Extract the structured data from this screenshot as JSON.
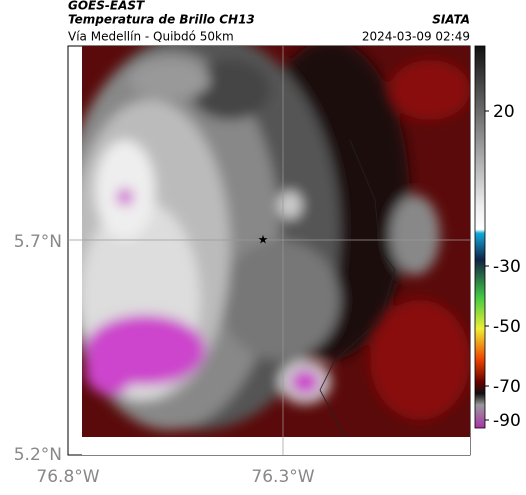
{
  "header": {
    "source": "GOES-EAST",
    "title": "Temperatura de Brillo CH13",
    "subtitle": "Vía Medellín - Quibdó 50km",
    "brand": "SIATA",
    "timestamp": "2024-03-09 02:49"
  },
  "map": {
    "lat_labels": [
      "5.7°N",
      "5.2°N"
    ],
    "lon_labels": [
      "76.8°W",
      "76.3°W"
    ]
  },
  "colorbar": {
    "ticks": [
      20,
      -30,
      -50,
      -70,
      -90
    ]
  }
}
